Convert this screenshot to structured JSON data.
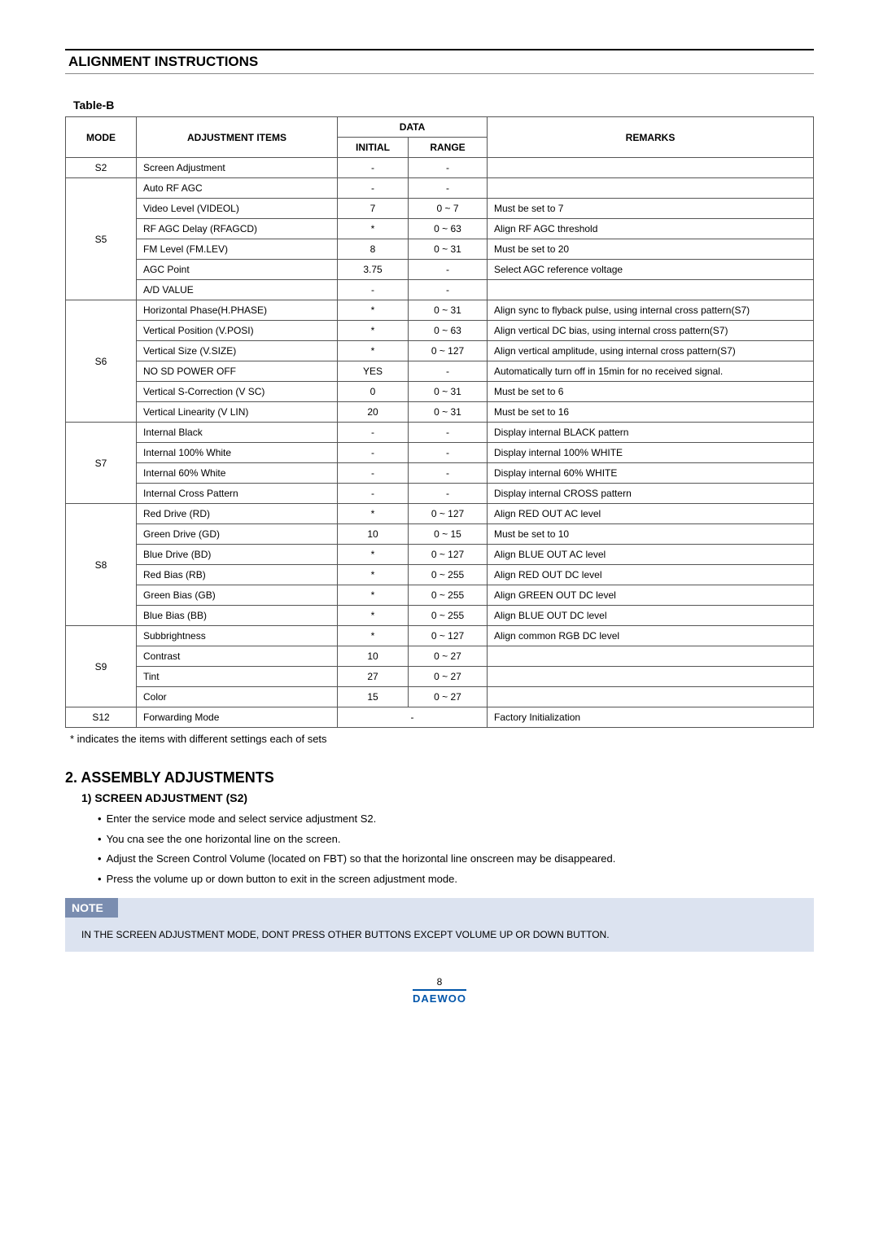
{
  "header": {
    "title": "ALIGNMENT INSTRUCTIONS"
  },
  "tableLabel": "Table-B",
  "tableHeaders": {
    "mode": "MODE",
    "adj": "ADJUSTMENT ITEMS",
    "data": "DATA",
    "initial": "INITIAL",
    "range": "RANGE",
    "remarks": "REMARKS"
  },
  "rows": [
    {
      "mode": "S2",
      "adj": "Screen Adjustment",
      "initial": "-",
      "range": "-",
      "remarks": "",
      "span": 1
    },
    {
      "mode": "S5",
      "span": 6,
      "items": [
        {
          "adj": "Auto RF AGC",
          "initial": "-",
          "range": "-",
          "remarks": ""
        },
        {
          "adj": "Video Level (VIDEOL)",
          "initial": "7",
          "range": "0 ~ 7",
          "remarks": "Must be set to 7"
        },
        {
          "adj": "RF AGC Delay (RFAGCD)",
          "initial": "*",
          "range": "0 ~ 63",
          "remarks": "Align RF AGC threshold"
        },
        {
          "adj": "FM Level (FM.LEV)",
          "initial": "8",
          "range": "0 ~ 31",
          "remarks": "Must be set to 20"
        },
        {
          "adj": "AGC Point",
          "initial": "3.75",
          "range": "-",
          "remarks": "Select AGC reference voltage"
        },
        {
          "adj": "A/D VALUE",
          "initial": "-",
          "range": "-",
          "remarks": ""
        }
      ]
    },
    {
      "mode": "S6",
      "span": 6,
      "items": [
        {
          "adj": "Horizontal Phase(H.PHASE)",
          "initial": "*",
          "range": "0 ~ 31",
          "remarks": "Align sync to flyback pulse, using internal cross pattern(S7)"
        },
        {
          "adj": "Vertical Position (V.POSI)",
          "initial": "*",
          "range": "0 ~ 63",
          "remarks": "Align vertical DC bias, using internal cross pattern(S7)"
        },
        {
          "adj": "Vertical Size (V.SIZE)",
          "initial": "*",
          "range": "0 ~ 127",
          "remarks": "Align vertical amplitude, using internal cross pattern(S7)"
        },
        {
          "adj": "NO SD POWER OFF",
          "initial": "YES",
          "range": "-",
          "remarks": "Automatically turn off in 15min for no received signal."
        },
        {
          "adj": "Vertical S-Correction (V SC)",
          "initial": "0",
          "range": "0 ~ 31",
          "remarks": "Must be set to 6"
        },
        {
          "adj": "Vertical Linearity (V LIN)",
          "initial": "20",
          "range": "0 ~ 31",
          "remarks": "Must be set to 16"
        }
      ]
    },
    {
      "mode": "S7",
      "span": 4,
      "items": [
        {
          "adj": "Internal Black",
          "initial": "-",
          "range": "-",
          "remarks": "Display internal BLACK pattern"
        },
        {
          "adj": "Internal 100% White",
          "initial": "-",
          "range": "-",
          "remarks": "Display internal 100% WHITE"
        },
        {
          "adj": "Internal 60% White",
          "initial": "-",
          "range": "-",
          "remarks": "Display internal 60% WHITE"
        },
        {
          "adj": "Internal Cross Pattern",
          "initial": "-",
          "range": "-",
          "remarks": "Display internal CROSS pattern"
        }
      ]
    },
    {
      "mode": "S8",
      "span": 6,
      "items": [
        {
          "adj": "Red Drive (RD)",
          "initial": "*",
          "range": "0 ~ 127",
          "remarks": "Align RED OUT AC level"
        },
        {
          "adj": "Green Drive (GD)",
          "initial": "10",
          "range": "0 ~ 15",
          "remarks": "Must be set to 10"
        },
        {
          "adj": "Blue Drive (BD)",
          "initial": "*",
          "range": "0 ~ 127",
          "remarks": "Align BLUE OUT AC level"
        },
        {
          "adj": "Red Bias (RB)",
          "initial": "*",
          "range": "0 ~ 255",
          "remarks": "Align RED OUT DC level"
        },
        {
          "adj": "Green Bias (GB)",
          "initial": "*",
          "range": "0 ~ 255",
          "remarks": "Align GREEN OUT DC level"
        },
        {
          "adj": "Blue Bias (BB)",
          "initial": "*",
          "range": "0 ~ 255",
          "remarks": "Align BLUE OUT DC level"
        }
      ]
    },
    {
      "mode": "S9",
      "span": 4,
      "items": [
        {
          "adj": "Subbrightness",
          "initial": "*",
          "range": "0 ~ 127",
          "remarks": "Align common RGB DC level"
        },
        {
          "adj": "Contrast",
          "initial": "10",
          "range": "0 ~ 27",
          "remarks": ""
        },
        {
          "adj": "Tint",
          "initial": "27",
          "range": "0 ~ 27",
          "remarks": ""
        },
        {
          "adj": "Color",
          "initial": "15",
          "range": "0 ~ 27",
          "remarks": ""
        }
      ]
    },
    {
      "mode": "S12",
      "adj": "Forwarding Mode",
      "initial": "-",
      "range": "",
      "remarks": "Factory Initialization",
      "span": 1,
      "colspanData": true
    }
  ],
  "footnote": "* indicates the items with different settings each of sets",
  "assembly": {
    "title": "2. ASSEMBLY ADJUSTMENTS",
    "sub": "1) SCREEN ADJUSTMENT (S2)",
    "bullets": [
      "Enter the service mode and select service adjustment S2.",
      "You cna see the one horizontal line on the screen.",
      "Adjust the Screen Control Volume (located on FBT) so that the horizontal line onscreen may be disappeared.",
      "Press the volume up or down button to exit in the screen adjustment mode."
    ]
  },
  "note": {
    "label": "NOTE",
    "content": "IN THE SCREEN ADJUSTMENT MODE, DONT PRESS OTHER BUTTONS EXCEPT VOLUME UP OR DOWN BUTTON."
  },
  "footer": {
    "page": "8",
    "brand": "DAEWOO"
  }
}
